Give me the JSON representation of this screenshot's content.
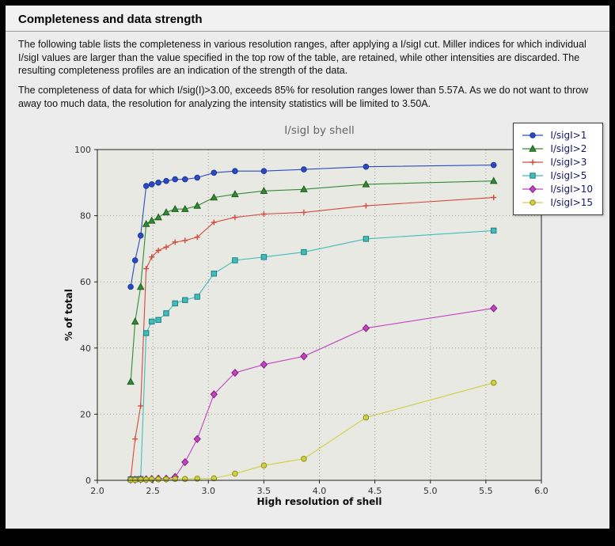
{
  "page": {
    "title": "Completeness and data strength",
    "paragraph1": "The following table lists the completeness in various resolution ranges, after applying a I/sigI cut. Miller indices for which individual I/sigI values are larger than the value specified in the top row of the table, are retained, while other intensities are discarded. The resulting completeness profiles are an indication of the strength of the data.",
    "paragraph2": "The completeness of data for which I/sig(I)>3.00, exceeds  85% for resolution ranges lower than 5.57A. As we do not want to throw away too much data, the resolution for analyzing the intensity statistics will be limited to 3.50A."
  },
  "chart_data": {
    "type": "line",
    "title": "I/sigI by shell",
    "xlabel": "High resolution of shell",
    "ylabel": "% of total",
    "xlim": [
      2.0,
      6.0
    ],
    "ylim": [
      0,
      100
    ],
    "xticks": [
      2.0,
      2.5,
      3.0,
      3.5,
      4.0,
      4.5,
      5.0,
      5.5,
      6.0
    ],
    "xtick_labels": [
      "2.0",
      "2.5",
      "3.0",
      "3.5",
      "4.0",
      "4.5",
      "5.0",
      "5.5",
      "6.0"
    ],
    "yticks": [
      0,
      20,
      40,
      60,
      80,
      100
    ],
    "ytick_labels": [
      "0",
      "20",
      "40",
      "60",
      "80",
      "100"
    ],
    "grid": true,
    "legend_position": "upper right",
    "colors": {
      "panel_bg": "#ececec",
      "plot_bg": "#e9e9e4",
      "grid": "#999999",
      "axis": "#222222",
      "chart_title_text": "#636363",
      "legend_text": "#15156b"
    },
    "x": [
      2.3,
      2.34,
      2.39,
      2.44,
      2.49,
      2.55,
      2.62,
      2.7,
      2.79,
      2.9,
      3.05,
      3.24,
      3.5,
      3.86,
      4.42,
      5.57
    ],
    "series": [
      {
        "name": "I/sigI>1",
        "color": "#2a4cc0",
        "edge": "#1c339a",
        "marker": "circle",
        "y": [
          58.5,
          66.5,
          74.0,
          89.0,
          89.5,
          90.0,
          90.5,
          91.0,
          91.0,
          91.5,
          93.0,
          93.5,
          93.5,
          94.0,
          94.8,
          95.3
        ]
      },
      {
        "name": "I/sigI>2",
        "color": "#338a33",
        "edge": "#1e5c1e",
        "marker": "triangle",
        "y": [
          29.8,
          48.0,
          58.5,
          77.5,
          78.5,
          79.5,
          81.0,
          82.0,
          82.0,
          83.0,
          85.5,
          86.5,
          87.5,
          88.0,
          89.5,
          90.5
        ]
      },
      {
        "name": "I/sigI>3",
        "color": "#d44a3a",
        "edge": "#a02a1e",
        "marker": "plus",
        "y": [
          0.5,
          12.5,
          22.5,
          64.0,
          67.5,
          69.5,
          70.5,
          72.0,
          72.5,
          73.5,
          78.0,
          79.5,
          80.5,
          81.0,
          83.0,
          85.5
        ]
      },
      {
        "name": "I/sigI>5",
        "color": "#3fbcbc",
        "edge": "#1f7f7f",
        "marker": "square",
        "y": [
          0.3,
          0.3,
          0.4,
          44.5,
          48.0,
          48.5,
          50.5,
          53.5,
          54.5,
          55.5,
          62.5,
          66.5,
          67.5,
          69.0,
          73.0,
          75.5
        ]
      },
      {
        "name": "I/sigI>10",
        "color": "#c343c3",
        "edge": "#7d1f7d",
        "marker": "diamond",
        "y": [
          0.2,
          0.2,
          0.3,
          0.3,
          0.4,
          0.5,
          0.5,
          1.0,
          5.5,
          12.5,
          26.0,
          32.5,
          35.0,
          37.5,
          46.0,
          52.0
        ]
      },
      {
        "name": "I/sigI>15",
        "color": "#cfcf3f",
        "edge": "#8f8f1f",
        "marker": "circle",
        "y": [
          0.1,
          0.1,
          0.2,
          0.2,
          0.3,
          0.3,
          0.3,
          0.4,
          0.4,
          0.5,
          0.6,
          2.0,
          4.5,
          6.5,
          19.0,
          29.5
        ]
      }
    ]
  }
}
